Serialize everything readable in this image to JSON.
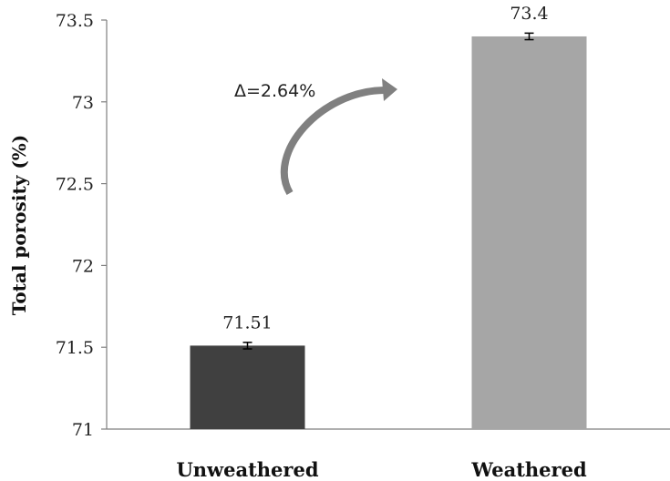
{
  "chart_data": {
    "type": "bar",
    "title": "",
    "xlabel": "",
    "ylabel": "Total porosity  (%)",
    "categories": [
      "Unweathered",
      "Weathered"
    ],
    "values": [
      71.51,
      73.4
    ],
    "data_labels": [
      "71.51",
      "73.4"
    ],
    "error": [
      0.02,
      0.02
    ],
    "ylim": [
      71,
      73.5
    ],
    "yticks": [
      71,
      71.5,
      72,
      72.5,
      73,
      73.5
    ],
    "ytick_labels": [
      "71",
      "71.5",
      "72",
      "72.5",
      "73",
      "73.5"
    ],
    "grid": false,
    "legend": "none",
    "colors": [
      "#404040",
      "#a6a6a6"
    ],
    "annotation": {
      "text": "Δ=2.64%",
      "arrow_color": "#808080"
    }
  }
}
